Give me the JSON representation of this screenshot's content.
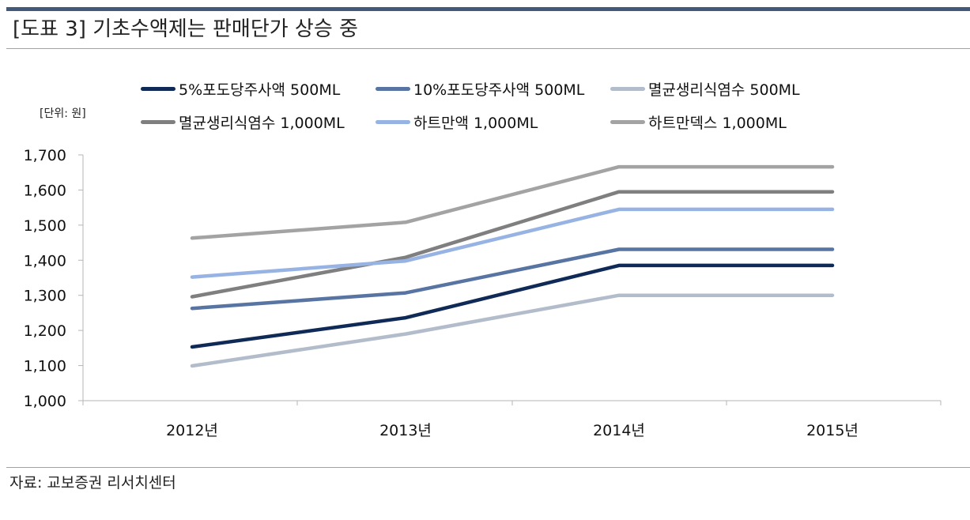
{
  "header": {
    "title": "[도표 3] 기초수액제는 판매단가 상승 중"
  },
  "footer": {
    "source": "자료: 교보증권 리서치센터"
  },
  "chart_data": {
    "type": "line",
    "unit_label": "[단위: 원]",
    "categories": [
      "2012년",
      "2013년",
      "2014년",
      "2015년"
    ],
    "ylim": [
      1000,
      1700
    ],
    "yticks": [
      1000,
      1100,
      1200,
      1300,
      1400,
      1500,
      1600,
      1700
    ],
    "ytick_labels": [
      "1,000",
      "1,100",
      "1,200",
      "1,300",
      "1,400",
      "1,500",
      "1,600",
      "1,700"
    ],
    "grid": false,
    "legend_position": "top",
    "series": [
      {
        "name": "5%포도당주사액 500ML",
        "values": [
          1153,
          1236,
          1385,
          1385
        ],
        "color": "#0f2a57"
      },
      {
        "name": "10%포도당주사액 500ML",
        "values": [
          1263,
          1307,
          1431,
          1431
        ],
        "color": "#5774a3"
      },
      {
        "name": "멸균생리식염수 500ML",
        "values": [
          1099,
          1190,
          1300,
          1300
        ],
        "color": "#b2bccb"
      },
      {
        "name": "멸균생리식염수 1,000ML",
        "values": [
          1296,
          1408,
          1595,
          1595
        ],
        "color": "#7f7f7f"
      },
      {
        "name": "하트만액 1,000ML",
        "values": [
          1352,
          1398,
          1545,
          1545
        ],
        "color": "#96b3e3"
      },
      {
        "name": "하트만덱스 1,000ML",
        "values": [
          1463,
          1508,
          1666,
          1666
        ],
        "color": "#a3a3a3"
      }
    ]
  }
}
